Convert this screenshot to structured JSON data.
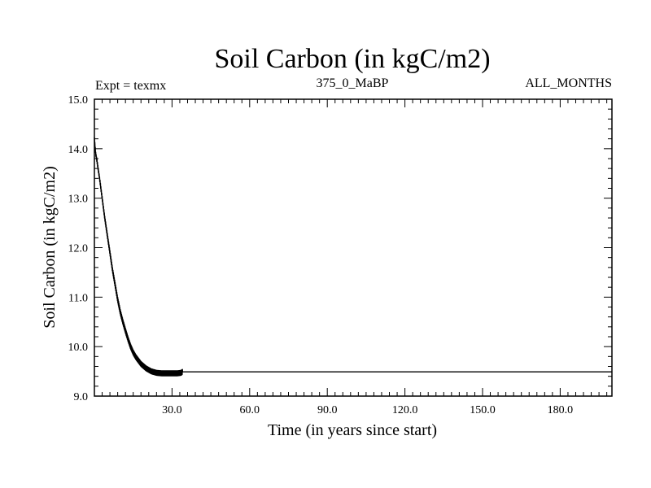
{
  "chart_data": {
    "type": "line",
    "title": "Soil Carbon (in kgC/m2)",
    "subtitle_left": "Expt = texmx",
    "subtitle_center": "375_0_MaBP",
    "subtitle_right": "ALL_MONTHS",
    "xlabel": "Time (in years since start)",
    "ylabel": "Soil Carbon (in kgC/m2)",
    "xlim": [
      0,
      200
    ],
    "ylim": [
      9.0,
      15.0
    ],
    "xticks": [
      30,
      60,
      90,
      120,
      150,
      180
    ],
    "xtick_labels": [
      "30.0",
      "60.0",
      "90.0",
      "120.0",
      "150.0",
      "180.0"
    ],
    "yticks": [
      9,
      10,
      11,
      12,
      13,
      14,
      15
    ],
    "ytick_labels": [
      "9.0",
      "10.0",
      "11.0",
      "12.0",
      "13.0",
      "14.0",
      "15.0"
    ],
    "series": [
      {
        "name": "Soil Carbon",
        "color": "#000000",
        "oscillation": 0.05,
        "x": [
          0,
          0.5,
          1,
          2,
          3,
          4,
          5,
          6,
          7,
          8,
          9,
          10,
          11,
          12,
          13,
          14,
          15,
          16,
          18,
          20,
          22,
          24,
          26,
          28,
          30,
          32,
          33.5,
          34,
          40,
          60,
          90,
          120,
          150,
          180,
          200
        ],
        "y": [
          14.2,
          13.9,
          13.75,
          13.4,
          13.0,
          12.6,
          12.25,
          11.9,
          11.55,
          11.25,
          10.95,
          10.7,
          10.5,
          10.32,
          10.15,
          10.0,
          9.88,
          9.79,
          9.65,
          9.56,
          9.5,
          9.47,
          9.46,
          9.46,
          9.46,
          9.46,
          9.47,
          9.49,
          9.49,
          9.49,
          9.49,
          9.49,
          9.49,
          9.49,
          9.49
        ]
      }
    ]
  }
}
